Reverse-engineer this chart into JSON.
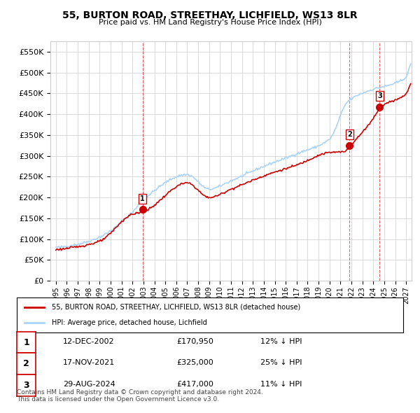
{
  "title": "55, BURTON ROAD, STREETHAY, LICHFIELD, WS13 8LR",
  "subtitle": "Price paid vs. HM Land Registry's House Price Index (HPI)",
  "ylim": [
    0,
    575000
  ],
  "yticks": [
    0,
    50000,
    100000,
    150000,
    200000,
    250000,
    300000,
    350000,
    400000,
    450000,
    500000,
    550000
  ],
  "ytick_labels": [
    "£0",
    "£50K",
    "£100K",
    "£150K",
    "£200K",
    "£250K",
    "£300K",
    "£350K",
    "£400K",
    "£450K",
    "£500K",
    "£550K"
  ],
  "hpi_color": "#aad4f5",
  "price_color": "#cc0000",
  "marker_color": "#cc0000",
  "legend_label_price": "55, BURTON ROAD, STREETHAY, LICHFIELD, WS13 8LR (detached house)",
  "legend_label_hpi": "HPI: Average price, detached house, Lichfield",
  "sale1_date": "12-DEC-2002",
  "sale1_price": "£170,950",
  "sale1_hpi": "12% ↓ HPI",
  "sale2_date": "17-NOV-2021",
  "sale2_price": "£325,000",
  "sale2_hpi": "25% ↓ HPI",
  "sale3_date": "29-AUG-2024",
  "sale3_price": "£417,000",
  "sale3_hpi": "11% ↓ HPI",
  "footer": "Contains HM Land Registry data © Crown copyright and database right 2024.\nThis data is licensed under the Open Government Licence v3.0.",
  "background_color": "#ffffff",
  "grid_color": "#cccccc"
}
